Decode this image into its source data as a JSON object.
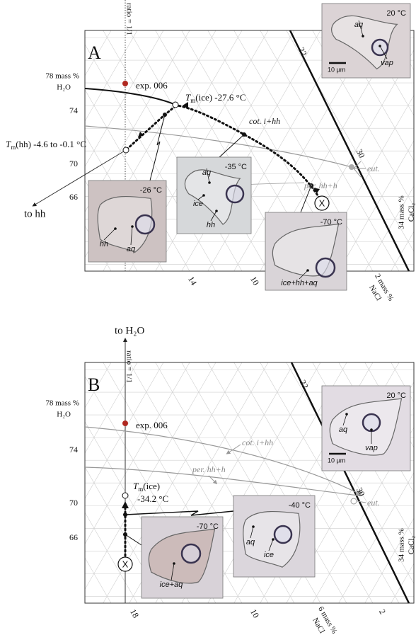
{
  "panels": [
    {
      "label": "A",
      "ratio": "ratio = 1/1",
      "h2o_label": [
        "78 mass %",
        "H₂O"
      ],
      "h2o_ticks": [
        "74",
        "70",
        "66"
      ],
      "cacl2_ticks": [
        "22",
        "30"
      ],
      "nacl_ticks": [
        "14",
        "10"
      ],
      "nacl_label": [
        "2 mass %",
        "NaCl"
      ],
      "cacl2_label": [
        "34 mass %",
        "CaCl₂"
      ],
      "sample": "exp. 006",
      "start_marker": "X",
      "tm_ice": {
        "symbol": "T",
        "sub": "m",
        "text": "(ice) -27.6 °C"
      },
      "tm_hh": {
        "symbol": "T",
        "sub": "m",
        "text": "(hh) -4.6 to -0.1 °C"
      },
      "cotectic": "cot. i+hh",
      "eutectic": "eut.",
      "peritectic": "per. hh+h",
      "arrow_label": "to hh",
      "micrographs": [
        {
          "temp": "20 °C",
          "labels": [
            "aq",
            "vap"
          ],
          "scale": "10 µm"
        },
        {
          "temp": "-26 °C",
          "labels": [
            "hh",
            "aq"
          ]
        },
        {
          "temp": "-35 °C",
          "labels": [
            "aq",
            "ice",
            "hh"
          ]
        },
        {
          "temp": "-70 °C",
          "labels": [
            "ice+hh+aq"
          ]
        }
      ]
    },
    {
      "label": "B",
      "ratio": "ratio = 1/1",
      "h2o_label": [
        "78 mass %",
        "H₂O"
      ],
      "h2o_ticks": [
        "74",
        "70",
        "66"
      ],
      "cacl2_ticks": [
        "22",
        "30"
      ],
      "nacl_ticks": [
        "18",
        "10",
        "2"
      ],
      "nacl_label": [
        "6 mass %",
        "NaCl"
      ],
      "cacl2_label": [
        "34 mass %",
        "CaCl₂"
      ],
      "sample": "exp. 006",
      "start_marker": "X",
      "tm_ice": {
        "symbol": "T",
        "sub": "m",
        "text": "(ice)",
        "value": "-34.2 °C"
      },
      "cotectic": "cot. i+hh",
      "eutectic": "eut.",
      "peritectic": "per. hh+h",
      "arrow_label": "to H₂O",
      "micrographs": [
        {
          "temp": "20 °C",
          "labels": [
            "aq",
            "vap"
          ],
          "scale": "10 µm"
        },
        {
          "temp": "-40 °C",
          "labels": [
            "aq",
            "ice"
          ]
        },
        {
          "temp": "-70 °C",
          "labels": [
            "ice+aq"
          ]
        }
      ]
    }
  ]
}
